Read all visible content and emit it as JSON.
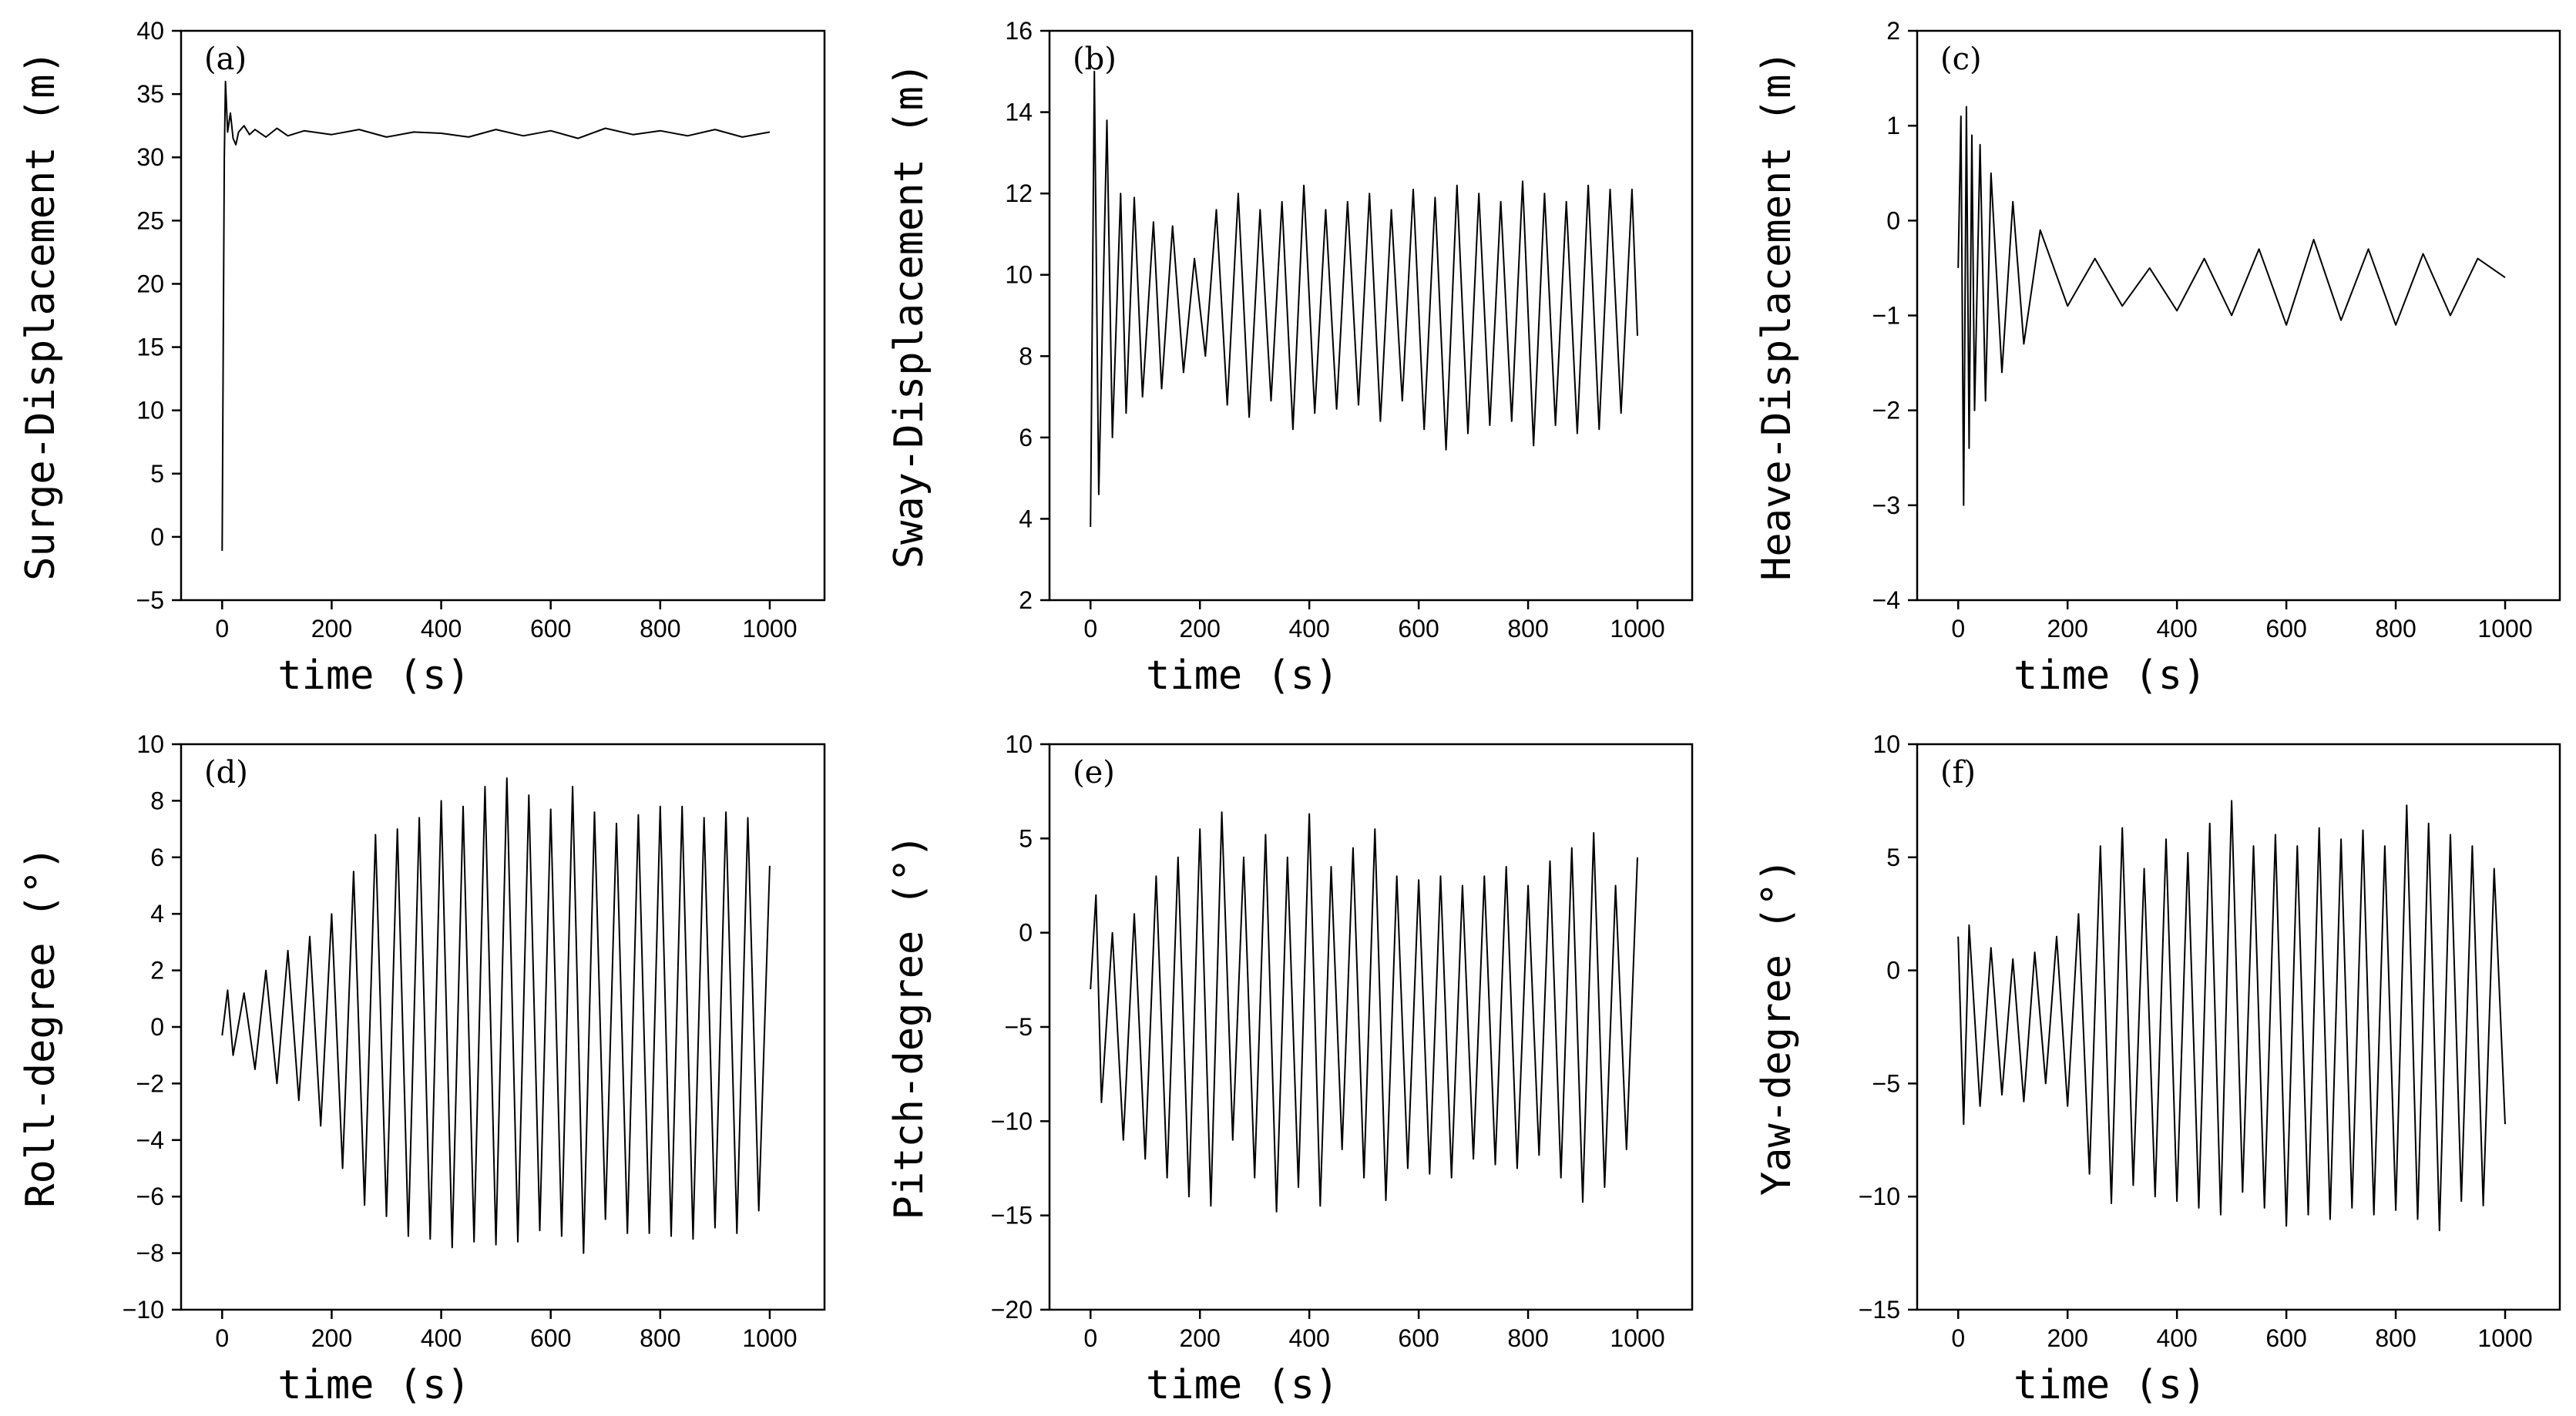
{
  "chart_data": [
    {
      "type": "line",
      "panel_label": "(a)",
      "xlabel": "time (s)",
      "ylabel": "Surge-Displacement (m)",
      "xlim": [
        -75,
        1100
      ],
      "ylim": [
        -5,
        40
      ],
      "xticks": [
        0,
        200,
        400,
        600,
        800,
        1000
      ],
      "yticks": [
        -5,
        0,
        5,
        10,
        15,
        20,
        25,
        30,
        35,
        40
      ],
      "xtick_labels": [
        "0",
        "200",
        "400",
        "600",
        "800",
        "1000"
      ],
      "ytick_labels": [
        "−5",
        "0",
        "5",
        "10",
        "15",
        "20",
        "25",
        "30",
        "35",
        "40"
      ],
      "series": [
        {
          "name": "surge",
          "x": [
            0,
            2,
            4,
            6,
            8,
            10,
            15,
            20,
            25,
            30,
            40,
            50,
            60,
            80,
            100,
            120,
            150,
            200,
            250,
            300,
            350,
            400,
            450,
            500,
            550,
            600,
            650,
            700,
            750,
            800,
            850,
            900,
            950,
            1000
          ],
          "y": [
            -1.1,
            15,
            30,
            36,
            34,
            32,
            33.5,
            31.5,
            31,
            32,
            32.5,
            31.8,
            32.2,
            31.6,
            32.3,
            31.7,
            32.1,
            31.8,
            32.2,
            31.6,
            32,
            31.9,
            31.6,
            32.2,
            31.7,
            32.1,
            31.5,
            32.3,
            31.8,
            32.1,
            31.7,
            32.2,
            31.6,
            32
          ]
        }
      ]
    },
    {
      "type": "line",
      "panel_label": "(b)",
      "xlabel": "time (s)",
      "ylabel": "Sway-Displacement (m)",
      "xlim": [
        -75,
        1100
      ],
      "ylim": [
        2,
        16
      ],
      "xticks": [
        0,
        200,
        400,
        600,
        800,
        1000
      ],
      "yticks": [
        2,
        4,
        6,
        8,
        10,
        12,
        14,
        16
      ],
      "xtick_labels": [
        "0",
        "200",
        "400",
        "600",
        "800",
        "1000"
      ],
      "ytick_labels": [
        "2",
        "4",
        "6",
        "8",
        "10",
        "12",
        "14",
        "16"
      ],
      "series": [
        {
          "name": "sway",
          "x": [
            0,
            7,
            15,
            30,
            40,
            55,
            65,
            80,
            95,
            115,
            130,
            150,
            170,
            190,
            210,
            230,
            250,
            270,
            290,
            310,
            330,
            350,
            370,
            390,
            410,
            430,
            450,
            470,
            490,
            510,
            530,
            550,
            570,
            590,
            610,
            630,
            650,
            670,
            690,
            710,
            730,
            750,
            770,
            790,
            810,
            830,
            850,
            870,
            890,
            910,
            930,
            950,
            970,
            990,
            1000
          ],
          "y": [
            3.8,
            15,
            4.6,
            13.8,
            6,
            12,
            6.6,
            11.9,
            7,
            11.3,
            7.2,
            11.2,
            7.6,
            10.4,
            8,
            11.6,
            6.8,
            12,
            6.5,
            11.6,
            6.9,
            11.8,
            6.2,
            12.2,
            6.6,
            11.6,
            6.7,
            11.8,
            6.8,
            12,
            6.4,
            11.6,
            6.9,
            12.1,
            6.2,
            11.9,
            5.7,
            12.2,
            6.1,
            12,
            6.3,
            11.8,
            6.4,
            12.3,
            5.8,
            12,
            6.3,
            11.8,
            6.1,
            12.2,
            6.2,
            12.1,
            6.6,
            12.1,
            8.5
          ]
        }
      ]
    },
    {
      "type": "line",
      "panel_label": "(c)",
      "xlabel": "time (s)",
      "ylabel": "Heave-Displacement (m)",
      "xlim": [
        -75,
        1100
      ],
      "ylim": [
        -4,
        2
      ],
      "xticks": [
        0,
        200,
        400,
        600,
        800,
        1000
      ],
      "yticks": [
        -4,
        -3,
        -2,
        -1,
        0,
        1,
        2
      ],
      "xtick_labels": [
        "0",
        "200",
        "400",
        "600",
        "800",
        "1000"
      ],
      "ytick_labels": [
        "−4",
        "−3",
        "−2",
        "−1",
        "0",
        "1",
        "2"
      ],
      "series": [
        {
          "name": "heave",
          "x": [
            0,
            5,
            10,
            15,
            20,
            25,
            30,
            40,
            50,
            60,
            80,
            100,
            120,
            150,
            200,
            250,
            300,
            350,
            400,
            450,
            500,
            550,
            600,
            650,
            700,
            750,
            800,
            850,
            900,
            950,
            1000
          ],
          "y": [
            -0.5,
            1.1,
            -3,
            1.2,
            -2.4,
            0.9,
            -2,
            0.8,
            -1.9,
            0.5,
            -1.6,
            0.2,
            -1.3,
            -0.1,
            -0.9,
            -0.4,
            -0.9,
            -0.5,
            -0.95,
            -0.4,
            -1,
            -0.3,
            -1.1,
            -0.2,
            -1.05,
            -0.3,
            -1.1,
            -0.35,
            -1,
            -0.4,
            -0.6
          ]
        }
      ]
    },
    {
      "type": "line",
      "panel_label": "(d)",
      "xlabel": "time (s)",
      "ylabel": "Roll-degree (°)",
      "xlim": [
        -75,
        1100
      ],
      "ylim": [
        -10,
        10
      ],
      "xticks": [
        0,
        200,
        400,
        600,
        800,
        1000
      ],
      "yticks": [
        -10,
        -8,
        -6,
        -4,
        -2,
        0,
        2,
        4,
        6,
        8,
        10
      ],
      "xtick_labels": [
        "0",
        "200",
        "400",
        "600",
        "800",
        "1000"
      ],
      "ytick_labels": [
        "−10",
        "−8",
        "−6",
        "−4",
        "−2",
        "0",
        "2",
        "4",
        "6",
        "8",
        "10"
      ],
      "series": [
        {
          "name": "roll",
          "x": [
            0,
            10,
            20,
            40,
            60,
            80,
            100,
            120,
            140,
            160,
            180,
            200,
            220,
            240,
            260,
            280,
            300,
            320,
            340,
            360,
            380,
            400,
            420,
            440,
            460,
            480,
            500,
            520,
            540,
            560,
            580,
            600,
            620,
            640,
            660,
            680,
            700,
            720,
            740,
            760,
            780,
            800,
            820,
            840,
            860,
            880,
            900,
            920,
            940,
            960,
            980,
            1000
          ],
          "y": [
            -0.3,
            1.3,
            -1,
            1.2,
            -1.5,
            2,
            -2,
            2.7,
            -2.6,
            3.2,
            -3.5,
            4,
            -5,
            5.5,
            -6.3,
            6.8,
            -6.7,
            7,
            -7.4,
            7.4,
            -7.5,
            8,
            -7.8,
            7.8,
            -7.6,
            8.5,
            -7.7,
            8.8,
            -7.6,
            8.2,
            -7.2,
            7.7,
            -7.4,
            8.5,
            -8,
            7.6,
            -6.8,
            7.2,
            -7.3,
            7.5,
            -7.3,
            7.8,
            -7.4,
            7.8,
            -7.5,
            7.4,
            -7.1,
            7.6,
            -7.3,
            7.4,
            -6.5,
            5.7
          ]
        }
      ]
    },
    {
      "type": "line",
      "panel_label": "(e)",
      "xlabel": "time (s)",
      "ylabel": "Pitch-degree (°)",
      "xlim": [
        -75,
        1100
      ],
      "ylim": [
        -20,
        10
      ],
      "xticks": [
        0,
        200,
        400,
        600,
        800,
        1000
      ],
      "yticks": [
        -20,
        -15,
        -10,
        -5,
        0,
        5,
        10
      ],
      "xtick_labels": [
        "0",
        "200",
        "400",
        "600",
        "800",
        "1000"
      ],
      "ytick_labels": [
        "−20",
        "−15",
        "−10",
        "−5",
        "0",
        "5",
        "10"
      ],
      "series": [
        {
          "name": "pitch",
          "x": [
            0,
            10,
            20,
            40,
            60,
            80,
            100,
            120,
            140,
            160,
            180,
            200,
            220,
            240,
            260,
            280,
            300,
            320,
            340,
            360,
            380,
            400,
            420,
            440,
            460,
            480,
            500,
            520,
            540,
            560,
            580,
            600,
            620,
            640,
            660,
            680,
            700,
            720,
            740,
            760,
            780,
            800,
            820,
            840,
            860,
            880,
            900,
            920,
            940,
            960,
            980,
            1000
          ],
          "y": [
            -3,
            2,
            -9,
            0,
            -11,
            1,
            -12,
            3,
            -13,
            4,
            -14,
            5.5,
            -14.5,
            6.4,
            -11,
            4,
            -13,
            5.2,
            -14.8,
            4,
            -13.5,
            6.3,
            -14.5,
            3.5,
            -11.5,
            4.5,
            -13,
            5.5,
            -14.2,
            3,
            -12.5,
            2.8,
            -12.8,
            3,
            -13,
            2.5,
            -12,
            3,
            -12.3,
            3.5,
            -12.5,
            2.5,
            -11.8,
            3.8,
            -13,
            4.5,
            -14.3,
            5.3,
            -13.5,
            2.5,
            -11.5,
            4
          ]
        }
      ]
    },
    {
      "type": "line",
      "panel_label": "(f)",
      "xlabel": "time (s)",
      "ylabel": "Yaw-degree (°)",
      "xlim": [
        -75,
        1100
      ],
      "ylim": [
        -15,
        10
      ],
      "xticks": [
        0,
        200,
        400,
        600,
        800,
        1000
      ],
      "yticks": [
        -15,
        -10,
        -5,
        0,
        5,
        10
      ],
      "xtick_labels": [
        "0",
        "200",
        "400",
        "600",
        "800",
        "1000"
      ],
      "ytick_labels": [
        "−15",
        "−10",
        "−5",
        "0",
        "5",
        "10"
      ],
      "series": [
        {
          "name": "yaw",
          "x": [
            0,
            10,
            20,
            40,
            60,
            80,
            100,
            120,
            140,
            160,
            180,
            200,
            220,
            240,
            260,
            280,
            300,
            320,
            340,
            360,
            380,
            400,
            420,
            440,
            460,
            480,
            500,
            520,
            540,
            560,
            580,
            600,
            620,
            640,
            660,
            680,
            700,
            720,
            740,
            760,
            780,
            800,
            820,
            840,
            860,
            880,
            900,
            920,
            940,
            960,
            980,
            1000
          ],
          "y": [
            1.5,
            -6.8,
            2,
            -6,
            1,
            -5.5,
            0.5,
            -5.8,
            0.8,
            -5,
            1.5,
            -6,
            2.5,
            -9,
            5.5,
            -10.3,
            6.3,
            -9.5,
            4.5,
            -10,
            5.8,
            -10.2,
            5.2,
            -10.5,
            6.5,
            -10.8,
            7.5,
            -9.8,
            5.5,
            -10.5,
            6,
            -11.3,
            5.5,
            -10.8,
            6.3,
            -11,
            5.8,
            -10.5,
            6.2,
            -10.8,
            5.5,
            -10.6,
            7.3,
            -11,
            6.5,
            -11.5,
            6,
            -10.2,
            5.5,
            -10.4,
            4.5,
            -6.8
          ]
        }
      ]
    }
  ]
}
